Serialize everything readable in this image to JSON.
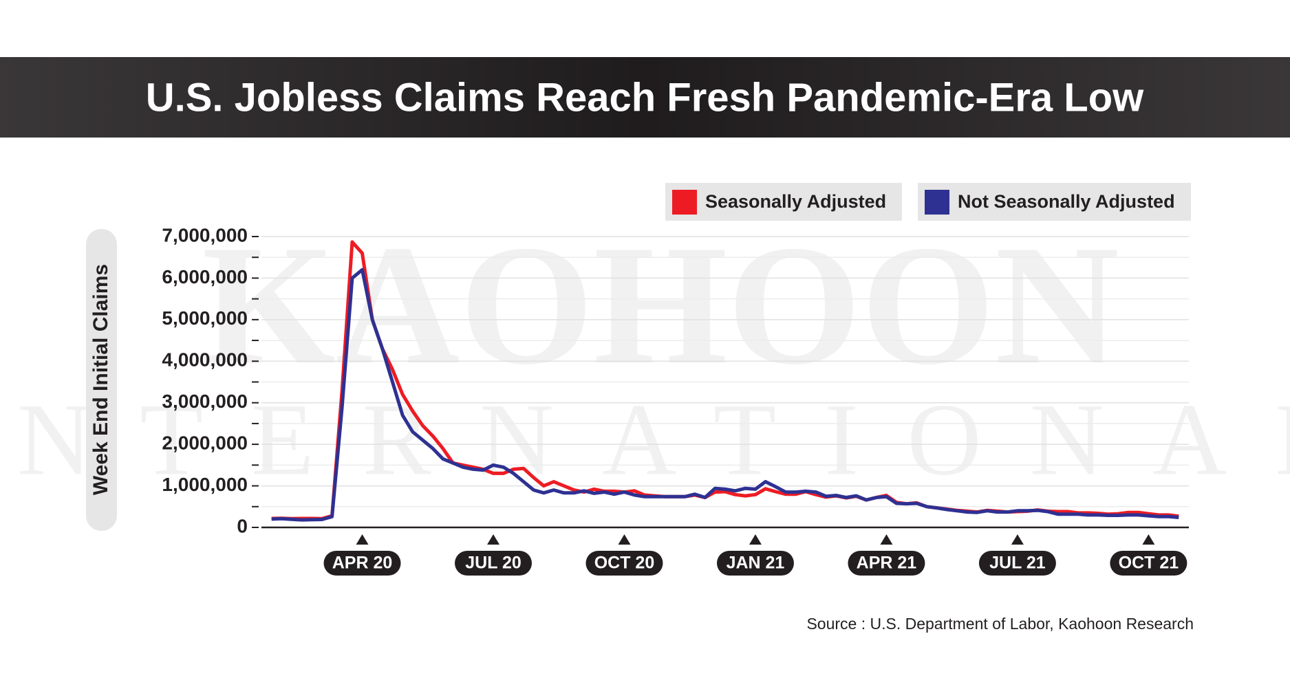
{
  "chart_data": {
    "type": "line",
    "title": "U.S. Jobless Claims Reach Fresh Pandemic-Era Low",
    "ylabel": "Week End Initial Claims",
    "source": "Source : U.S. Department of Labor, Kaohoon Research",
    "watermark": [
      "KAOHOON",
      "INTERNATIONAL"
    ],
    "categories": [
      null,
      null,
      null,
      null,
      null,
      null,
      null,
      null,
      null,
      "APR 20",
      null,
      null,
      null,
      null,
      null,
      null,
      null,
      null,
      null,
      null,
      null,
      null,
      "JUL 20",
      null,
      null,
      null,
      null,
      null,
      null,
      null,
      null,
      null,
      null,
      null,
      null,
      "OCT 20",
      null,
      null,
      null,
      null,
      null,
      null,
      null,
      null,
      null,
      null,
      null,
      null,
      "JAN 21",
      null,
      null,
      null,
      null,
      null,
      null,
      null,
      null,
      null,
      null,
      null,
      null,
      "APR 21",
      null,
      null,
      null,
      null,
      null,
      null,
      null,
      null,
      null,
      null,
      null,
      null,
      "JUL 21",
      null,
      null,
      null,
      null,
      null,
      null,
      null,
      null,
      null,
      null,
      null,
      null,
      "OCT 21",
      null,
      null,
      null
    ],
    "series": [
      {
        "name": "Seasonally Adjusted",
        "color": "#ed1c24",
        "values": [
          215000,
          220000,
          210000,
          215000,
          215000,
          210000,
          280000,
          3300000,
          6870000,
          6600000,
          5000000,
          4300000,
          3800000,
          3200000,
          2800000,
          2450000,
          2200000,
          1900000,
          1550000,
          1500000,
          1450000,
          1400000,
          1300000,
          1300000,
          1400000,
          1420000,
          1200000,
          1000000,
          1100000,
          1000000,
          900000,
          850000,
          920000,
          870000,
          870000,
          850000,
          880000,
          780000,
          760000,
          740000,
          740000,
          740000,
          780000,
          720000,
          850000,
          860000,
          790000,
          760000,
          790000,
          930000,
          860000,
          800000,
          800000,
          860000,
          790000,
          730000,
          760000,
          710000,
          750000,
          660000,
          720000,
          770000,
          600000,
          570000,
          590000,
          500000,
          470000,
          440000,
          410000,
          390000,
          370000,
          410000,
          390000,
          370000,
          380000,
          390000,
          420000,
          390000,
          380000,
          380000,
          350000,
          350000,
          340000,
          320000,
          330000,
          360000,
          360000,
          330000,
          300000,
          300000,
          270000
        ]
      },
      {
        "name": "Not Seasonally Adjusted",
        "color": "#2e3192",
        "values": [
          200000,
          210000,
          195000,
          180000,
          185000,
          190000,
          260000,
          2900000,
          6000000,
          6200000,
          5000000,
          4300000,
          3500000,
          2700000,
          2300000,
          2100000,
          1900000,
          1650000,
          1550000,
          1450000,
          1400000,
          1380000,
          1500000,
          1450000,
          1300000,
          1100000,
          900000,
          830000,
          900000,
          830000,
          830000,
          880000,
          820000,
          850000,
          800000,
          850000,
          780000,
          740000,
          740000,
          740000,
          740000,
          740000,
          800000,
          720000,
          940000,
          920000,
          880000,
          940000,
          920000,
          1100000,
          980000,
          850000,
          850000,
          870000,
          850000,
          750000,
          770000,
          720000,
          760000,
          660000,
          720000,
          740000,
          580000,
          570000,
          580000,
          500000,
          470000,
          430000,
          400000,
          370000,
          360000,
          400000,
          370000,
          370000,
          400000,
          400000,
          410000,
          380000,
          320000,
          320000,
          320000,
          300000,
          300000,
          290000,
          290000,
          300000,
          300000,
          280000,
          260000,
          260000,
          240000
        ]
      }
    ],
    "ylim": [
      0,
      7000000
    ],
    "yticks": [
      0,
      {
        "value": 1000000,
        "label": "1,000,000"
      },
      {
        "value": 2000000,
        "label": "2,000,000"
      },
      {
        "value": 3000000,
        "label": "3,000,000"
      },
      {
        "value": 4000000,
        "label": "4,000,000"
      },
      {
        "value": 5000000,
        "label": "5,000,000"
      },
      {
        "value": 6000000,
        "label": "6,000,000"
      },
      {
        "value": 7000000,
        "label": "7,000,000"
      }
    ],
    "yminor_ticks": [
      500000,
      1500000,
      2500000,
      3500000,
      4500000,
      5500000,
      6500000
    ],
    "grid": true,
    "legend": "top-right"
  }
}
